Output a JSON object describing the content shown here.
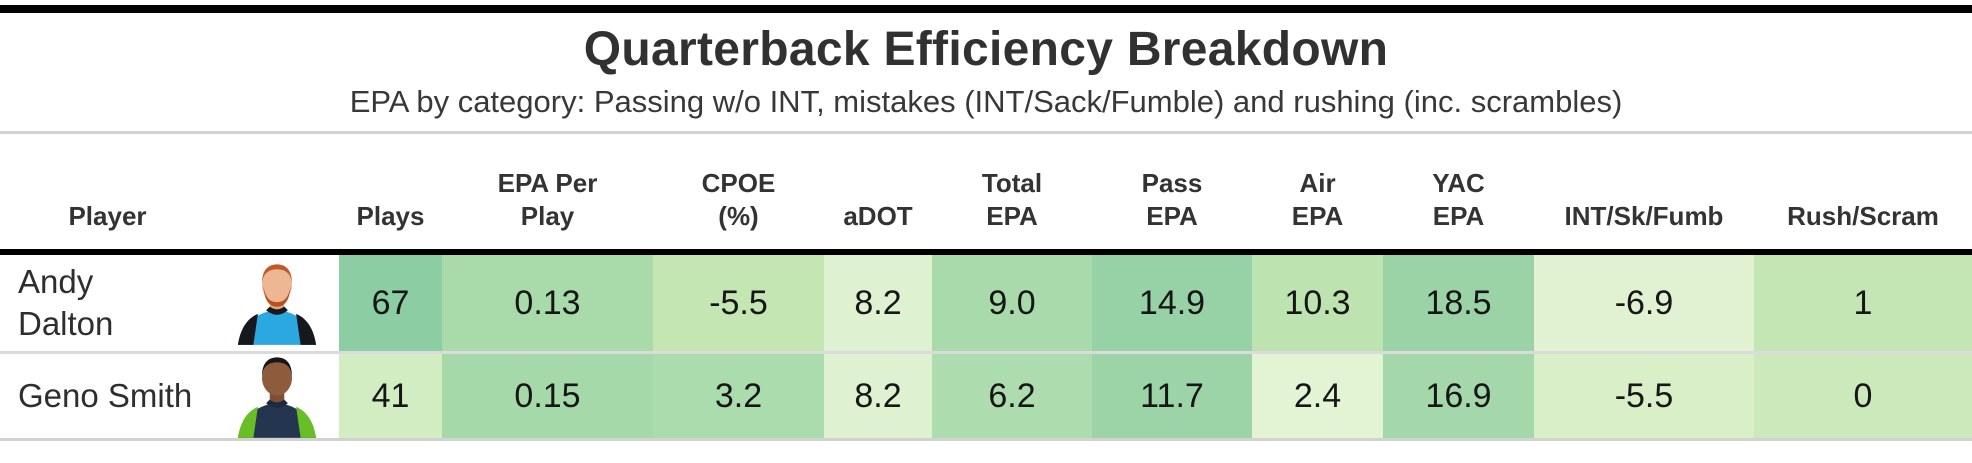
{
  "header": {
    "title": "Quarterback Efficiency Breakdown",
    "subtitle": "EPA by category: Passing w/o INT, mistakes (INT/Sack/Fumble) and rushing (inc. scrambles)"
  },
  "table": {
    "columns": [
      {
        "id": "player",
        "label": "Player",
        "label_lines": [
          "Player"
        ]
      },
      {
        "id": "headshot",
        "label": "",
        "label_lines": []
      },
      {
        "id": "plays",
        "label": "Plays",
        "label_lines": [
          "Plays"
        ]
      },
      {
        "id": "epa_per_play",
        "label": "EPA Per Play",
        "label_lines": [
          "EPA Per",
          "Play"
        ]
      },
      {
        "id": "cpoe_pct",
        "label": "CPOE (%)",
        "label_lines": [
          "CPOE",
          "(%)"
        ]
      },
      {
        "id": "adot",
        "label": "aDOT",
        "label_lines": [
          "aDOT"
        ]
      },
      {
        "id": "total_epa",
        "label": "Total EPA",
        "label_lines": [
          "Total",
          "EPA"
        ]
      },
      {
        "id": "pass_epa",
        "label": "Pass EPA",
        "label_lines": [
          "Pass",
          "EPA"
        ]
      },
      {
        "id": "air_epa",
        "label": "Air EPA",
        "label_lines": [
          "Air",
          "EPA"
        ]
      },
      {
        "id": "yac_epa",
        "label": "YAC EPA",
        "label_lines": [
          "YAC",
          "EPA"
        ]
      },
      {
        "id": "int_sk_fumb",
        "label": "INT/Sk/Fumb",
        "label_lines": [
          "INT/Sk/Fumb"
        ]
      },
      {
        "id": "rush_scram",
        "label": "Rush/Scram",
        "label_lines": [
          "Rush/Scram"
        ]
      }
    ],
    "rows": [
      {
        "player": "Andy Dalton",
        "name_lines": [
          "Andy",
          "Dalton"
        ],
        "headshot": {
          "team_hint": "panthers",
          "skin": "#eeb793",
          "neck": "#e2a57d",
          "hair": "#c05a28",
          "beard": "#b5511f",
          "jersey": "#2ba8e0",
          "shoulder": "#15181c",
          "collar": "#15181c"
        },
        "cells": [
          {
            "col": "plays",
            "value": "67",
            "bg": "#8ccda4"
          },
          {
            "col": "epa_per_play",
            "value": "0.13",
            "bg": "#a9daaa"
          },
          {
            "col": "cpoe_pct",
            "value": "-5.5",
            "bg": "#c3e6b3"
          },
          {
            "col": "adot",
            "value": "8.2",
            "bg": "#def1d0"
          },
          {
            "col": "total_epa",
            "value": "9.0",
            "bg": "#a9daab"
          },
          {
            "col": "pass_epa",
            "value": "14.9",
            "bg": "#97d2a6"
          },
          {
            "col": "air_epa",
            "value": "10.3",
            "bg": "#bce3b0"
          },
          {
            "col": "yac_epa",
            "value": "18.5",
            "bg": "#9bd3a6"
          },
          {
            "col": "int_sk_fumb",
            "value": "-6.9",
            "bg": "#e1f2d3"
          },
          {
            "col": "rush_scram",
            "value": "1",
            "bg": "#c3e6b4"
          }
        ]
      },
      {
        "player": "Geno Smith",
        "name_lines": [
          "Geno Smith"
        ],
        "headshot": {
          "team_hint": "seahawks",
          "skin": "#8e5c3c",
          "neck": "#7e4f32",
          "hair": "#161616",
          "beard": "",
          "jersey": "#24364f",
          "shoulder": "#69be28",
          "collar": "#1a2a40"
        },
        "cells": [
          {
            "col": "plays",
            "value": "41",
            "bg": "#d2edc1"
          },
          {
            "col": "epa_per_play",
            "value": "0.15",
            "bg": "#a6d9a9"
          },
          {
            "col": "cpoe_pct",
            "value": "3.2",
            "bg": "#abdcad"
          },
          {
            "col": "adot",
            "value": "8.2",
            "bg": "#def1d0"
          },
          {
            "col": "total_epa",
            "value": "6.2",
            "bg": "#addcae"
          },
          {
            "col": "pass_epa",
            "value": "11.7",
            "bg": "#9cd4a7"
          },
          {
            "col": "air_epa",
            "value": "2.4",
            "bg": "#e3f4d5"
          },
          {
            "col": "yac_epa",
            "value": "16.9",
            "bg": "#a4d8aa"
          },
          {
            "col": "int_sk_fumb",
            "value": "-5.5",
            "bg": "#d9efc7"
          },
          {
            "col": "rush_scram",
            "value": "0",
            "bg": "#cbe9ba"
          }
        ]
      }
    ]
  }
}
